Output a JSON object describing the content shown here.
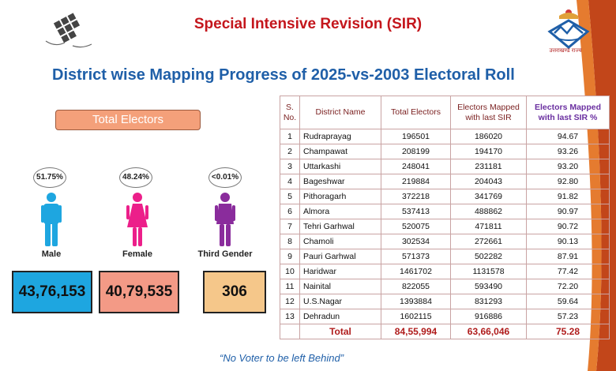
{
  "header": {
    "sir_title": "Special Intensive Revision (SIR)",
    "main_title": "District wise Mapping Progress of 2025-vs-2003 Electoral Roll",
    "state_logo_caption": "उत्तराखण्ड राज्य"
  },
  "summary": {
    "banner": "Total Electors",
    "male": {
      "pct": "51.75%",
      "label": "Male",
      "count": "43,76,153"
    },
    "female": {
      "pct": "48.24%",
      "label": "Female",
      "count": "40,79,535"
    },
    "third": {
      "pct": "<0.01%",
      "label": "Third Gender",
      "count": "306"
    }
  },
  "table": {
    "headers": {
      "sno": "S. No.",
      "district": "District Name",
      "total": "Total Electors",
      "mapped": "Electors Mapped with last SIR",
      "pct": "Electors Mapped with last SIR %"
    },
    "rows": [
      [
        "1",
        "Rudraprayag",
        "196501",
        "186020",
        "94.67"
      ],
      [
        "2",
        "Champawat",
        "208199",
        "194170",
        "93.26"
      ],
      [
        "3",
        "Uttarkashi",
        "248041",
        "231181",
        "93.20"
      ],
      [
        "4",
        "Bageshwar",
        "219884",
        "204043",
        "92.80"
      ],
      [
        "5",
        "Pithoragarh",
        "372218",
        "341769",
        "91.82"
      ],
      [
        "6",
        "Almora",
        "537413",
        "488862",
        "90.97"
      ],
      [
        "7",
        "Tehri Garhwal",
        "520075",
        "471811",
        "90.72"
      ],
      [
        "8",
        "Chamoli",
        "302534",
        "272661",
        "90.13"
      ],
      [
        "9",
        "Pauri Garhwal",
        "571373",
        "502282",
        "87.91"
      ],
      [
        "10",
        "Haridwar",
        "1461702",
        "1131578",
        "77.42"
      ],
      [
        "11",
        "Nainital",
        "822055",
        "593490",
        "72.20"
      ],
      [
        "12",
        "U.S.Nagar",
        "1393884",
        "831293",
        "59.64"
      ],
      [
        "13",
        "Dehradun",
        "1602115",
        "916886",
        "57.23"
      ]
    ],
    "total": {
      "label": "Total",
      "total": "84,55,994",
      "mapped": "63,66,046",
      "pct": "75.28"
    }
  },
  "footer": {
    "slogan": "“No Voter to be left Behind”"
  },
  "colors": {
    "title_red": "#c4161c",
    "title_blue": "#1f5fa8",
    "male": "#1ea6e0",
    "female": "#f39a86",
    "third": "#f5c78a",
    "banner": "#f4a07a",
    "highlight_purple": "#6a2fa0"
  }
}
